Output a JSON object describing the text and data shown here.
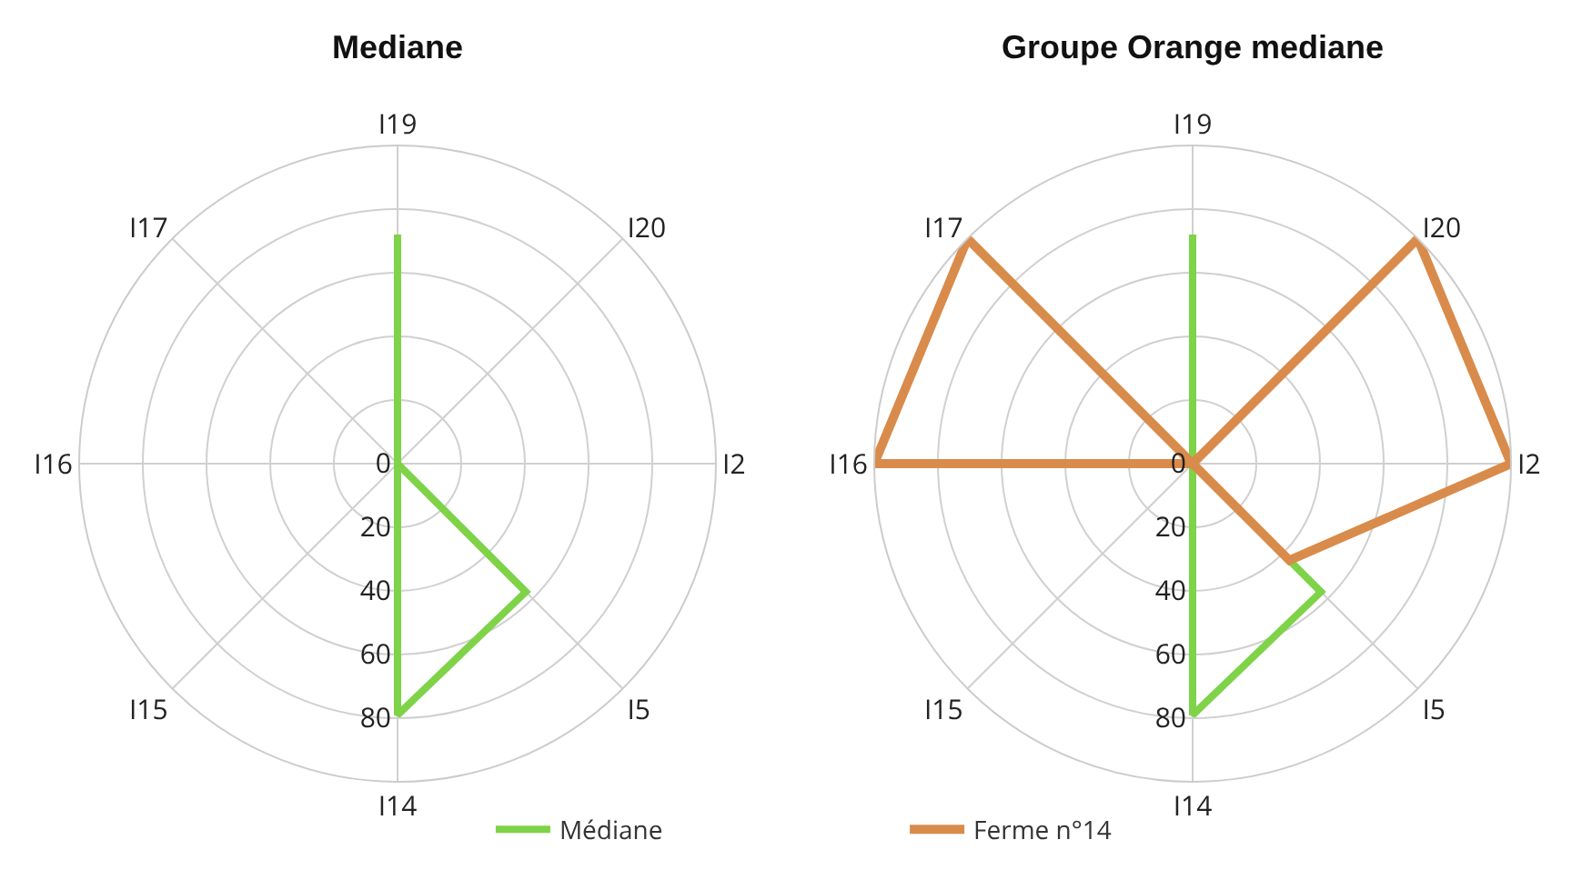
{
  "chart_data": [
    {
      "type": "radar",
      "title": "Mediane",
      "categories": [
        "I19",
        "I20",
        "I2",
        "I5",
        "I14",
        "I15",
        "I16",
        "I17"
      ],
      "series": [
        {
          "name": "Médiane",
          "color": "#7ed348",
          "values": [
            72,
            0,
            0,
            57,
            79,
            0,
            0,
            0
          ]
        }
      ],
      "ylim": [
        0,
        100
      ],
      "yticks": [
        0,
        20,
        40,
        60,
        80
      ],
      "grid": true,
      "legend": "bottom"
    },
    {
      "type": "radar",
      "title": "Groupe Orange mediane",
      "categories": [
        "I19",
        "I20",
        "I2",
        "I5",
        "I14",
        "I15",
        "I16",
        "I17"
      ],
      "series": [
        {
          "color": "#7ed348",
          "values": [
            72,
            0,
            0,
            57,
            79,
            0,
            0,
            0
          ]
        },
        {
          "name": "Ferme n°14",
          "color": "#d98b4b",
          "values": [
            0,
            100,
            100,
            43,
            0,
            0,
            100,
            100
          ]
        }
      ],
      "ylim": [
        0,
        100
      ],
      "yticks": [
        0,
        20,
        40,
        60,
        80
      ],
      "grid": true,
      "legend": "bottom"
    }
  ]
}
